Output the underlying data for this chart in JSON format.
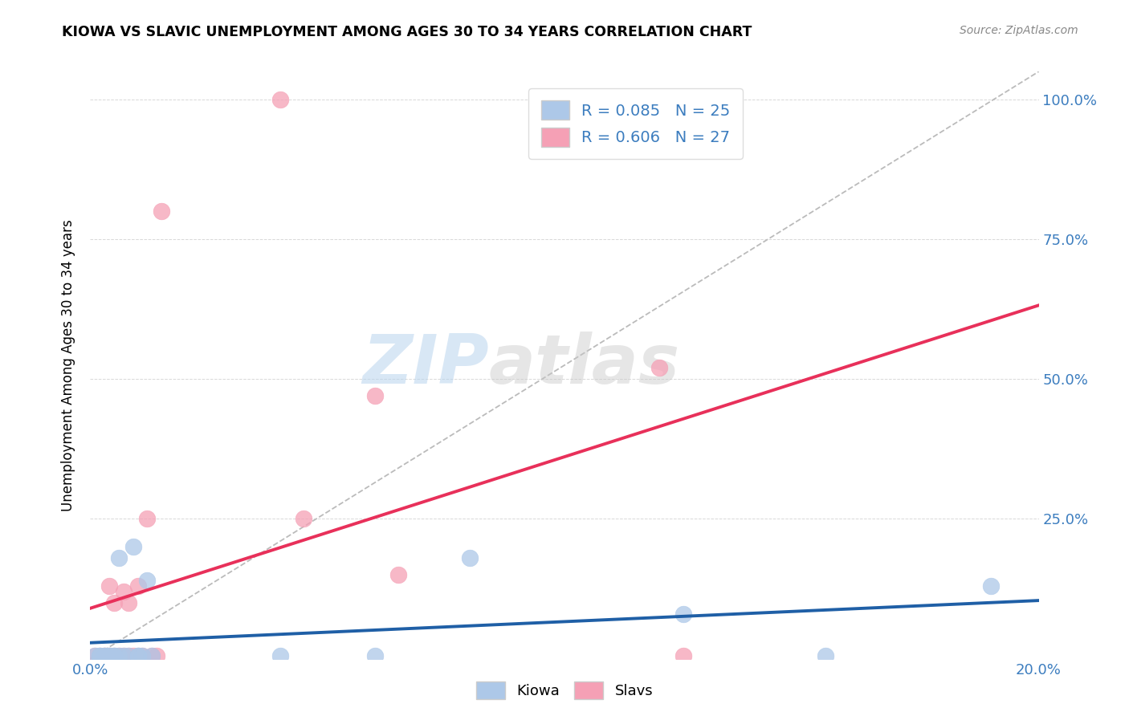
{
  "title": "KIOWA VS SLAVIC UNEMPLOYMENT AMONG AGES 30 TO 34 YEARS CORRELATION CHART",
  "source": "Source: ZipAtlas.com",
  "ylabel": "Unemployment Among Ages 30 to 34 years",
  "xlim": [
    0.0,
    0.2
  ],
  "ylim": [
    0.0,
    1.05
  ],
  "xticks": [
    0.0,
    0.04,
    0.08,
    0.12,
    0.16,
    0.2
  ],
  "xticklabels": [
    "0.0%",
    "",
    "",
    "",
    "",
    "20.0%"
  ],
  "yticks": [
    0.0,
    0.25,
    0.5,
    0.75,
    1.0
  ],
  "yticklabels_right": [
    "",
    "25.0%",
    "50.0%",
    "75.0%",
    "100.0%"
  ],
  "kiowa_R": 0.085,
  "kiowa_N": 25,
  "slavic_R": 0.606,
  "slavic_N": 27,
  "kiowa_color": "#adc8e8",
  "slavic_color": "#f5a0b5",
  "kiowa_line_color": "#1f5fa6",
  "slavic_line_color": "#e8305a",
  "diagonal_color": "#bbbbbb",
  "kiowa_x": [
    0.001,
    0.002,
    0.002,
    0.003,
    0.003,
    0.004,
    0.004,
    0.005,
    0.005,
    0.006,
    0.006,
    0.007,
    0.008,
    0.009,
    0.01,
    0.01,
    0.011,
    0.012,
    0.013,
    0.04,
    0.06,
    0.08,
    0.125,
    0.155,
    0.19
  ],
  "kiowa_y": [
    0.005,
    0.005,
    0.005,
    0.005,
    0.005,
    0.005,
    0.005,
    0.005,
    0.005,
    0.18,
    0.005,
    0.005,
    0.005,
    0.2,
    0.005,
    0.005,
    0.005,
    0.14,
    0.005,
    0.005,
    0.005,
    0.18,
    0.08,
    0.005,
    0.13
  ],
  "slavic_x": [
    0.001,
    0.002,
    0.003,
    0.003,
    0.004,
    0.004,
    0.005,
    0.005,
    0.006,
    0.007,
    0.007,
    0.008,
    0.008,
    0.009,
    0.01,
    0.01,
    0.011,
    0.012,
    0.013,
    0.014,
    0.015,
    0.04,
    0.045,
    0.06,
    0.065,
    0.12,
    0.125
  ],
  "slavic_y": [
    0.005,
    0.005,
    0.005,
    0.005,
    0.005,
    0.13,
    0.005,
    0.1,
    0.005,
    0.005,
    0.12,
    0.005,
    0.1,
    0.005,
    0.005,
    0.13,
    0.005,
    0.25,
    0.005,
    0.005,
    0.8,
    1.0,
    0.25,
    0.47,
    0.15,
    0.52,
    0.005
  ],
  "watermark_zip": "ZIP",
  "watermark_atlas": "atlas",
  "legend_kiowa": "Kiowa",
  "legend_slavs": "Slavs"
}
